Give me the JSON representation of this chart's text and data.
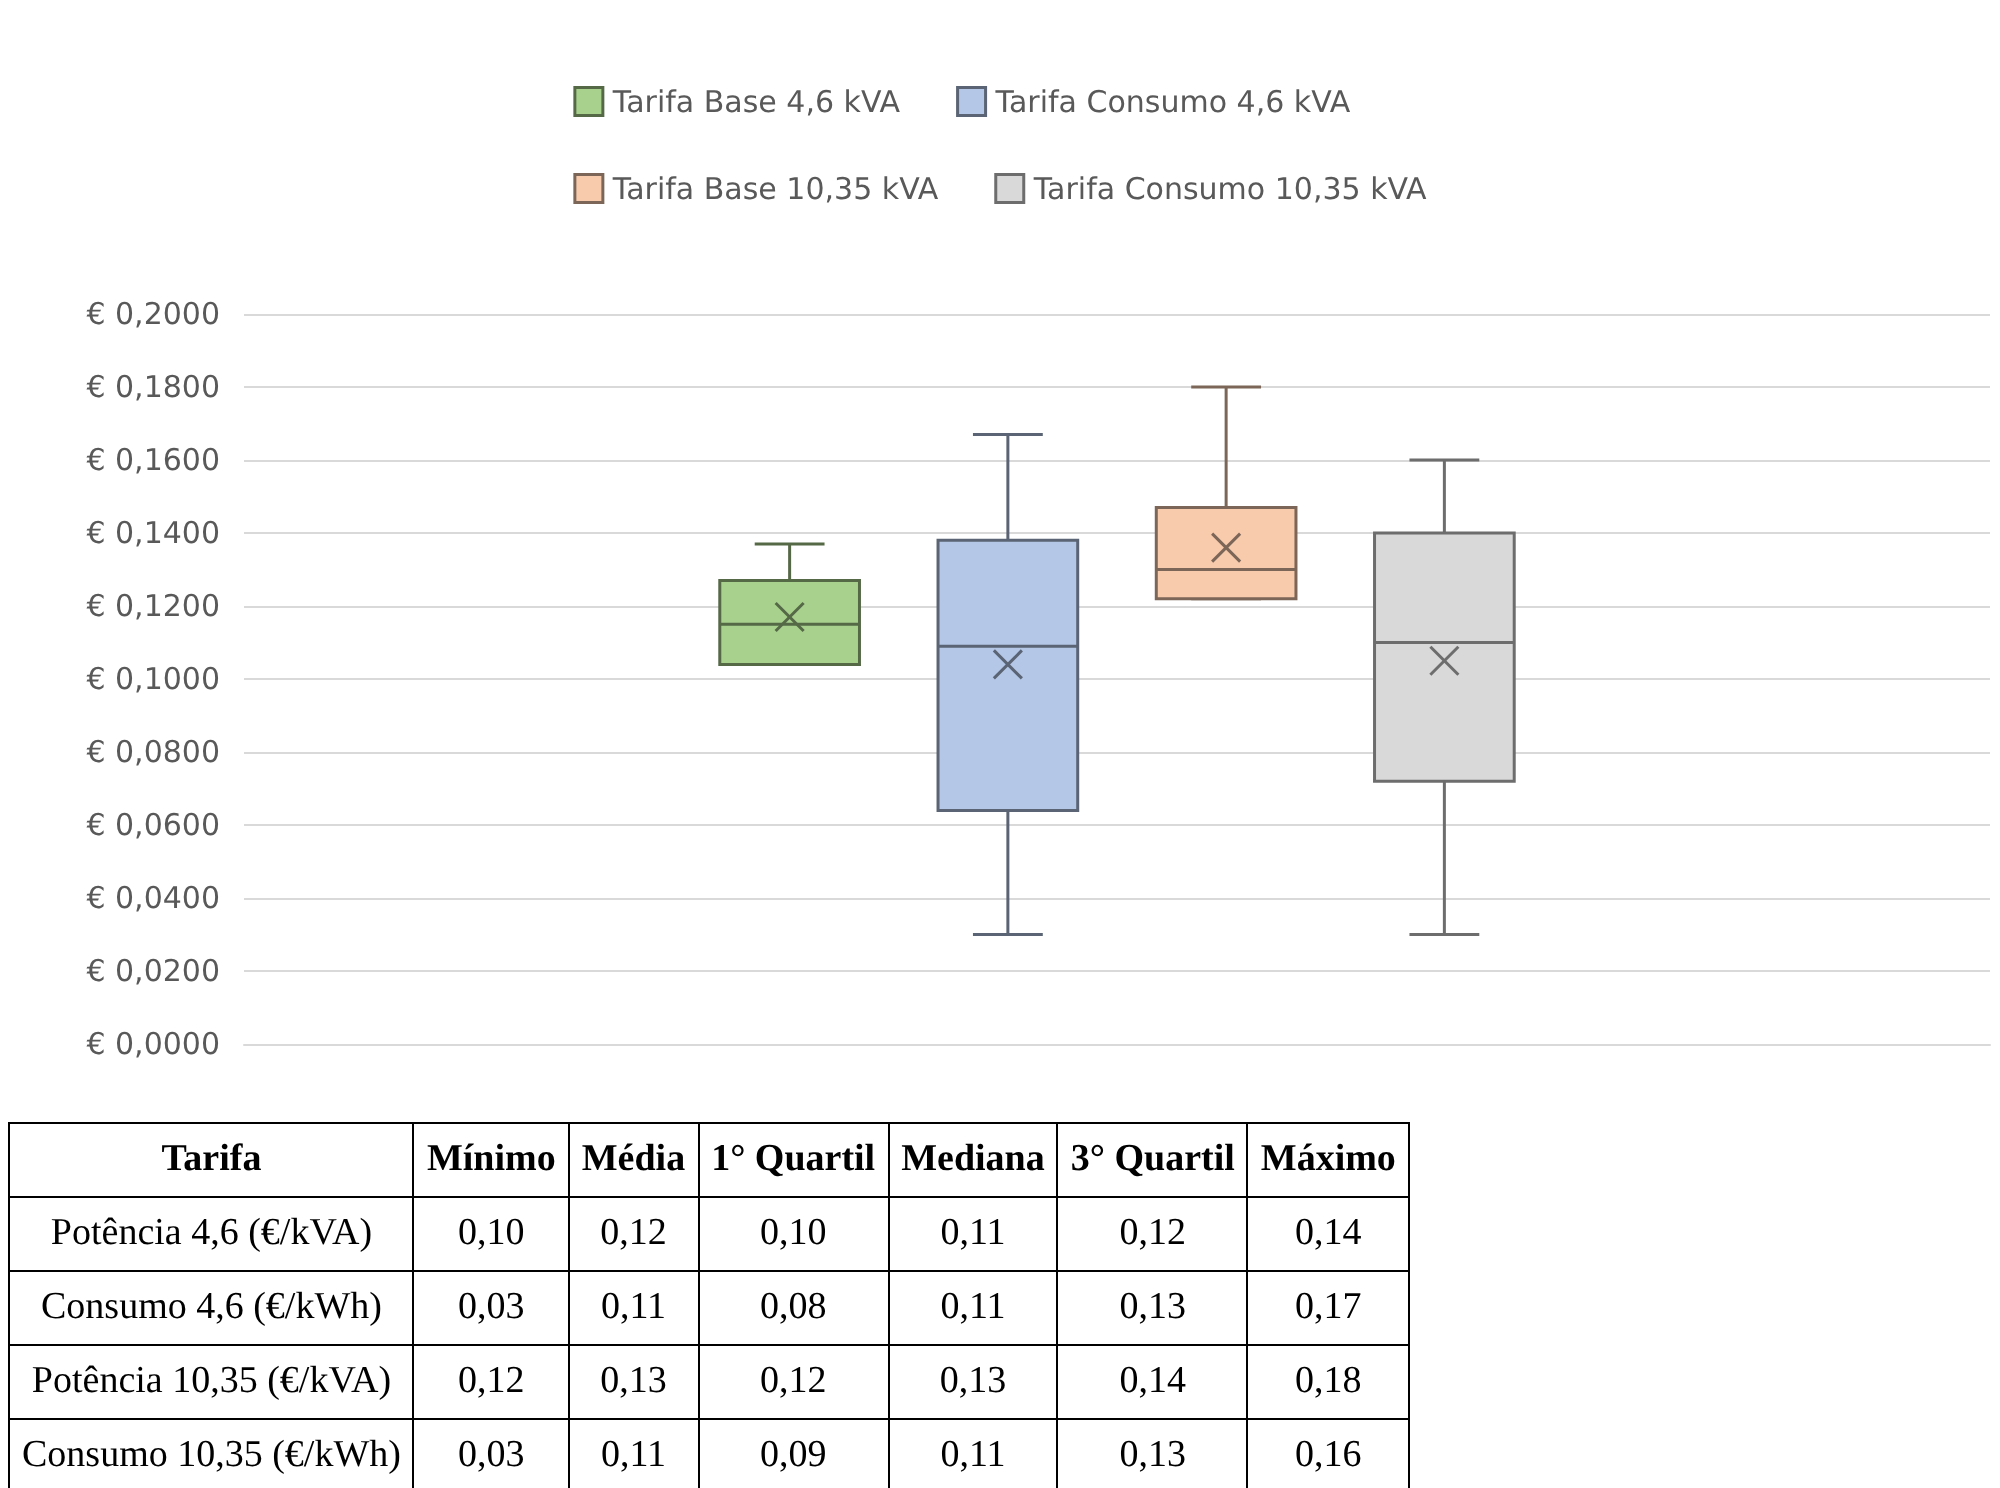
{
  "chart_data": [
    {
      "type": "box",
      "categories": [
        null
      ],
      "legend": "top",
      "grid": "y",
      "ylim": [
        0,
        0.2
      ],
      "yticks": [
        {
          "value": 0,
          "label": "€ 0,0000"
        },
        {
          "value": 0.02,
          "label": "€ 0,0200"
        },
        {
          "value": 0.04,
          "label": "€ 0,0400"
        },
        {
          "value": 0.06,
          "label": "€ 0,0600"
        },
        {
          "value": 0.08,
          "label": "€ 0,0800"
        },
        {
          "value": 0.1,
          "label": "€ 0,1000"
        },
        {
          "value": 0.12,
          "label": "€ 0,1200"
        },
        {
          "value": 0.14,
          "label": "€ 0,1400"
        },
        {
          "value": 0.16,
          "label": "€ 0,1600"
        },
        {
          "value": 0.18,
          "label": "€ 0,1800"
        },
        {
          "value": 0.2,
          "label": "€ 0,2000"
        }
      ],
      "series": [
        {
          "name": "Tarifa Base 4,6 kVA",
          "color": "#a9d18e",
          "boxes": [
            {
              "low": 0.104,
              "q1": 0.104,
              "median": 0.115,
              "q3": 0.127,
              "high": 0.137,
              "mean": 0.117
            }
          ]
        },
        {
          "name": "Tarifa Consumo 4,6 kVA",
          "color": "#b4c7e7",
          "boxes": [
            {
              "low": 0.03,
              "q1": 0.064,
              "median": 0.109,
              "q3": 0.138,
              "high": 0.167,
              "mean": 0.104
            }
          ]
        },
        {
          "name": "Tarifa Base 10,35 kVA",
          "color": "#f8cbad",
          "boxes": [
            {
              "low": 0.122,
              "q1": 0.122,
              "median": 0.13,
              "q3": 0.147,
              "high": 0.18,
              "mean": 0.136
            }
          ]
        },
        {
          "name": "Tarifa Consumo 10,35 kVA",
          "color": "#d9d9d9",
          "boxes": [
            {
              "low": 0.03,
              "q1": 0.072,
              "median": 0.11,
              "q3": 0.14,
              "high": 0.16,
              "mean": 0.105
            }
          ]
        }
      ]
    },
    {
      "type": "other",
      "xlabel": "Tarifa",
      "categories": [
        "Potência 4,6 (€/kVA)",
        "Consumo 4,6 (€/kWh)",
        "Potência 10,35 (€/kVA)",
        "Consumo 10,35 (€/kWh)"
      ],
      "series": [
        {
          "name": "Mínimo",
          "values": [
            0.1,
            0.03,
            0.12,
            0.03
          ],
          "value_labels": [
            "0,10",
            "0,03",
            "0,12",
            "0,03"
          ]
        },
        {
          "name": "Média",
          "values": [
            0.12,
            0.11,
            0.13,
            0.11
          ],
          "value_labels": [
            "0,12",
            "0,11",
            "0,13",
            "0,11"
          ]
        },
        {
          "name": "1° Quartil",
          "values": [
            0.1,
            0.08,
            0.12,
            0.09
          ],
          "value_labels": [
            "0,10",
            "0,08",
            "0,12",
            "0,09"
          ]
        },
        {
          "name": "Mediana",
          "values": [
            0.11,
            0.11,
            0.13,
            0.11
          ],
          "value_labels": [
            "0,11",
            "0,11",
            "0,13",
            "0,11"
          ]
        },
        {
          "name": "3° Quartil",
          "values": [
            0.12,
            0.13,
            0.14,
            0.13
          ],
          "value_labels": [
            "0,12",
            "0,13",
            "0,14",
            "0,13"
          ]
        },
        {
          "name": "Máximo",
          "values": [
            0.14,
            0.17,
            0.18,
            0.16
          ],
          "value_labels": [
            "0,14",
            "0,17",
            "0,18",
            "0,16"
          ]
        }
      ]
    }
  ]
}
